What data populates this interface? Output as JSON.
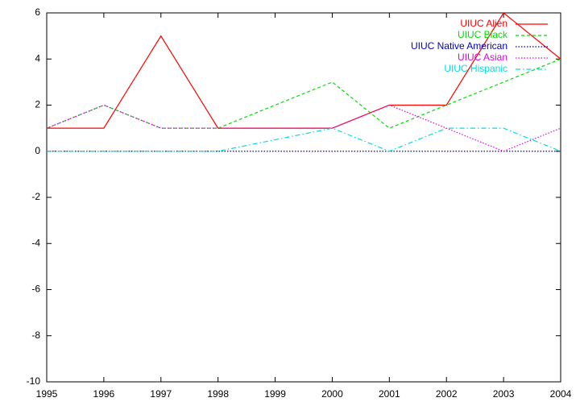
{
  "chart_data": {
    "type": "line",
    "x": [
      1995,
      1996,
      1997,
      1998,
      1999,
      2000,
      2001,
      2002,
      2003,
      2004
    ],
    "xlim": [
      1995,
      2004
    ],
    "xticks": [
      1995,
      1996,
      1997,
      1998,
      1999,
      2000,
      2001,
      2002,
      2003,
      2004
    ],
    "ylim": [
      -10,
      6
    ],
    "yticks": [
      -10,
      -8,
      -6,
      -4,
      -2,
      0,
      2,
      4,
      6
    ],
    "grid": false,
    "legend": "top-right",
    "series": [
      {
        "name": "UIUC Alien",
        "color": "#ff0000",
        "line_style": "solid",
        "values": [
          1,
          1,
          5,
          1,
          1,
          1,
          2,
          2,
          6,
          4
        ]
      },
      {
        "name": "UIUC Black",
        "color": "#00dd00",
        "line_style": "dashed",
        "values": [
          1,
          2,
          1,
          1,
          2,
          3,
          1,
          2,
          3,
          4
        ]
      },
      {
        "name": "UIUC Native American",
        "color": "#0000cc",
        "line_style": "dotted",
        "values": [
          0,
          0,
          0,
          0,
          0,
          0,
          0,
          0,
          0,
          0
        ]
      },
      {
        "name": "UIUC Asian",
        "color": "#e000e0",
        "line_style": "dotted",
        "values": [
          1,
          2,
          1,
          1,
          1,
          1,
          2,
          1,
          0,
          1
        ]
      },
      {
        "name": "UIUC Hispanic",
        "color": "#00dddd",
        "line_style": "dash-dot",
        "values": [
          0,
          0,
          0,
          0,
          0.5,
          1,
          0,
          1,
          1,
          0
        ]
      }
    ]
  }
}
